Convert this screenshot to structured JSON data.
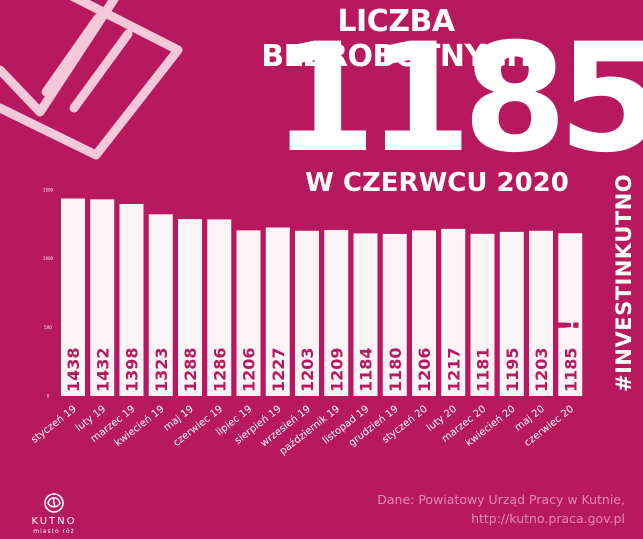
{
  "header": {
    "title": "LICZBA BEZROBOTNYCH",
    "big_number": "1185",
    "subtitle": "W CZERWCU 2020"
  },
  "hashtag": "#INVESTINKUTNO",
  "source": "Dane: Powiatowy Urząd Pracy w Kutnie,\nhttp://kutno.praca.gov.pl",
  "logo": {
    "name": "KUTNO",
    "tagline": "miasto róż"
  },
  "colors": {
    "background": "#b8195e",
    "bar": "#fbf4f7",
    "value_text": "#b8195e",
    "accent": "#ffffff"
  },
  "highlight": {
    "category": "czerwiec 20",
    "marker": "!"
  },
  "chart_data": {
    "type": "bar",
    "categories": [
      "styczeń 19",
      "luty 19",
      "marzec 19",
      "kwiecień 19",
      "maj 19",
      "czerwiec 19",
      "lipiec 19",
      "sierpień 19",
      "wrzesień 19",
      "październik 19",
      "listopad 19",
      "grudzień 19",
      "styczeń 20",
      "luty 20",
      "marzec 20",
      "kwiecień 20",
      "maj 20",
      "czerwiec 20"
    ],
    "values": [
      1438,
      1432,
      1398,
      1323,
      1288,
      1286,
      1206,
      1227,
      1203,
      1209,
      1184,
      1180,
      1206,
      1217,
      1181,
      1195,
      1203,
      1185
    ],
    "ylim": [
      0,
      1500
    ],
    "yticks": [
      "1500",
      "1000",
      "500",
      "0"
    ],
    "grid": false,
    "legend": "none"
  }
}
